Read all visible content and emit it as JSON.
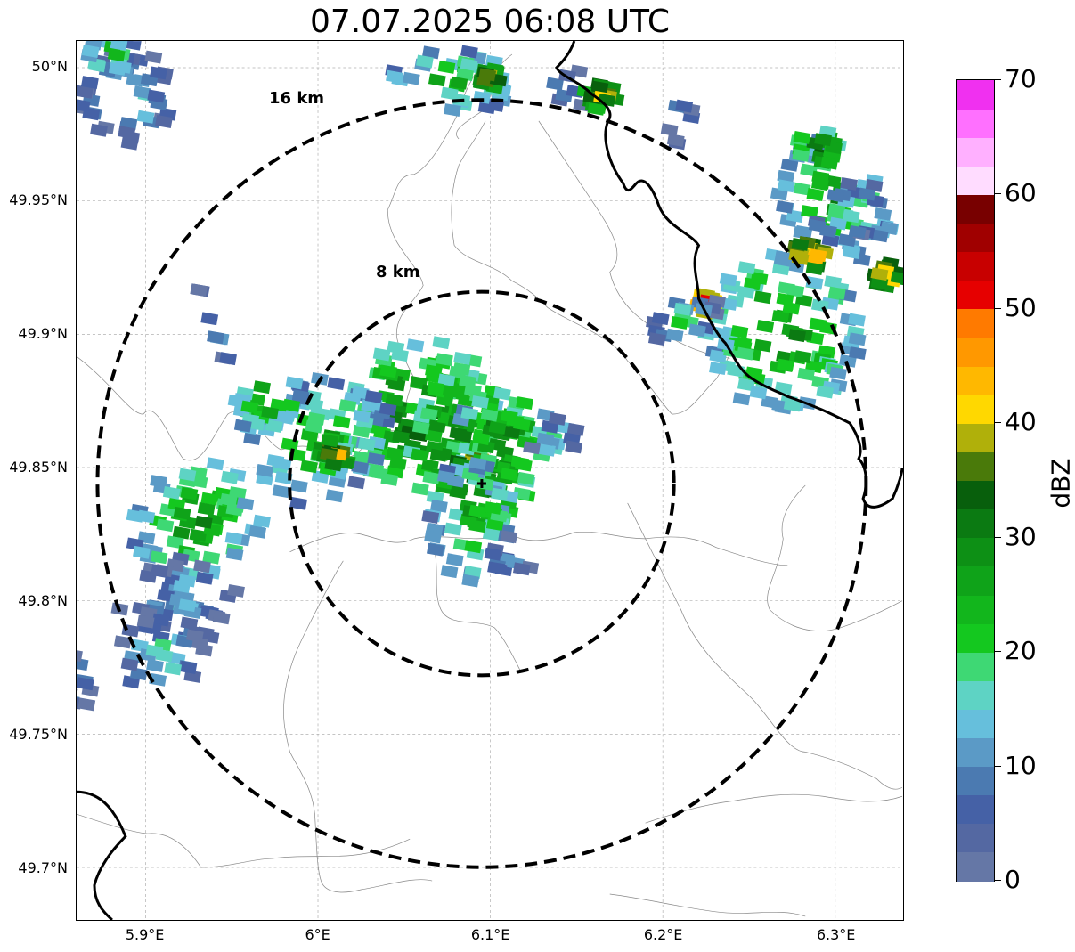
{
  "title": "07.07.2025 06:08 UTC",
  "lat_labels": [
    "50°N",
    "49.95°N",
    "49.9°N",
    "49.85°N",
    "49.8°N",
    "49.75°N",
    "49.7°N"
  ],
  "lon_labels": [
    "5.9°E",
    "6°E",
    "6.1°E",
    "6.2°E",
    "6.3°E"
  ],
  "rings": [
    {
      "label": "16 km",
      "radius_km": 16
    },
    {
      "label": "8 km",
      "radius_km": 8
    }
  ],
  "radar_center": {
    "lon": 6.095,
    "lat": 49.844
  },
  "colorbar": {
    "label": "dBZ",
    "min": 0,
    "max": 70,
    "ticks": [
      "0",
      "10",
      "20",
      "30",
      "40",
      "50",
      "60",
      "70"
    ],
    "colors": [
      "#6577a6",
      "#5468a2",
      "#4561a6",
      "#4b7ab1",
      "#5b9ac6",
      "#66bfdc",
      "#5ed3c4",
      "#3ed874",
      "#14c81f",
      "#12b61c",
      "#0fa319",
      "#0d9015",
      "#0b7a12",
      "#085f0c",
      "#4a7a0a",
      "#b0b00a",
      "#ffd800",
      "#ffb800",
      "#ff9800",
      "#ff7a00",
      "#e60000",
      "#c80000",
      "#a00000",
      "#780000",
      "#ffdcff",
      "#ffb0ff",
      "#ff70ff",
      "#f030f0"
    ]
  },
  "colors": {
    "ring": "#000000",
    "border": "#000000",
    "grid": "#b0b0b0",
    "admin": "#888888"
  },
  "echoes": [
    {
      "lon": 6.06,
      "lat": 49.87,
      "rlon": 0.045,
      "rlat": 0.028,
      "rot": 35,
      "dbz": 30
    },
    {
      "lon": 6.09,
      "lat": 49.855,
      "rlon": 0.035,
      "rlat": 0.03,
      "rot": 30,
      "dbz": 32
    },
    {
      "lon": 6.11,
      "lat": 49.86,
      "rlon": 0.03,
      "rlat": 0.02,
      "rot": 40,
      "dbz": 27
    },
    {
      "lon": 6.09,
      "lat": 49.83,
      "rlon": 0.025,
      "rlat": 0.025,
      "rot": 0,
      "dbz": 22
    },
    {
      "lon": 6.11,
      "lat": 49.815,
      "rlon": 0.02,
      "rlat": 0.012,
      "rot": 20,
      "dbz": 7
    },
    {
      "lon": 6.14,
      "lat": 49.86,
      "rlon": 0.02,
      "rlat": 0.01,
      "rot": 40,
      "dbz": 12
    },
    {
      "lon": 6.0,
      "lat": 49.86,
      "rlon": 0.045,
      "rlat": 0.022,
      "rot": 30,
      "dbz": 22
    },
    {
      "lon": 5.97,
      "lat": 49.875,
      "rlon": 0.02,
      "rlat": 0.012,
      "rot": 30,
      "dbz": 26
    },
    {
      "lon": 6.01,
      "lat": 49.855,
      "rlon": 0.01,
      "rlat": 0.006,
      "rot": 0,
      "dbz": 38
    },
    {
      "lon": 5.94,
      "lat": 49.9,
      "rlon": 0.01,
      "rlat": 0.03,
      "rot": 20,
      "dbz": 6
    },
    {
      "lon": 5.93,
      "lat": 49.83,
      "rlon": 0.04,
      "rlat": 0.022,
      "rot": 30,
      "dbz": 24
    },
    {
      "lon": 5.92,
      "lat": 49.8,
      "rlon": 0.04,
      "rlat": 0.025,
      "rot": 25,
      "dbz": 9
    },
    {
      "lon": 5.91,
      "lat": 49.78,
      "rlon": 0.025,
      "rlat": 0.015,
      "rot": 20,
      "dbz": 16
    },
    {
      "lon": 5.86,
      "lat": 49.77,
      "rlon": 0.012,
      "rlat": 0.015,
      "rot": 0,
      "dbz": 10
    },
    {
      "lon": 5.89,
      "lat": 49.99,
      "rlon": 0.03,
      "rlat": 0.02,
      "rot": 15,
      "dbz": 14
    },
    {
      "lon": 5.88,
      "lat": 50.005,
      "rlon": 0.015,
      "rlat": 0.008,
      "rot": 10,
      "dbz": 22
    },
    {
      "lon": 6.08,
      "lat": 49.995,
      "rlon": 0.04,
      "rlat": 0.012,
      "rot": 0,
      "dbz": 22
    },
    {
      "lon": 6.145,
      "lat": 49.993,
      "rlon": 0.03,
      "rlat": 0.01,
      "rot": 0,
      "dbz": 8
    },
    {
      "lon": 6.165,
      "lat": 49.99,
      "rlon": 0.01,
      "rlat": 0.006,
      "rot": 0,
      "dbz": 38
    },
    {
      "lon": 6.1,
      "lat": 49.996,
      "rlon": 0.006,
      "rlat": 0.004,
      "rot": 0,
      "dbz": 40
    },
    {
      "lon": 6.27,
      "lat": 49.9,
      "rlon": 0.045,
      "rlat": 0.03,
      "rot": 25,
      "dbz": 26
    },
    {
      "lon": 6.3,
      "lat": 49.95,
      "rlon": 0.03,
      "rlat": 0.025,
      "rot": 40,
      "dbz": 23
    },
    {
      "lon": 6.305,
      "lat": 49.945,
      "rlon": 0.025,
      "rlat": 0.012,
      "rot": 40,
      "dbz": 14
    },
    {
      "lon": 6.29,
      "lat": 49.97,
      "rlon": 0.012,
      "rlat": 0.008,
      "rot": 0,
      "dbz": 32
    },
    {
      "lon": 6.285,
      "lat": 49.93,
      "rlon": 0.012,
      "rlat": 0.006,
      "rot": 20,
      "dbz": 44
    },
    {
      "lon": 6.33,
      "lat": 49.922,
      "rlon": 0.008,
      "rlat": 0.005,
      "rot": 20,
      "dbz": 42
    },
    {
      "lon": 6.225,
      "lat": 49.911,
      "rlon": 0.006,
      "rlat": 0.004,
      "rot": 20,
      "dbz": 50
    },
    {
      "lon": 6.21,
      "lat": 49.905,
      "rlon": 0.025,
      "rlat": 0.01,
      "rot": 25,
      "dbz": 14
    },
    {
      "lon": 6.21,
      "lat": 49.98,
      "rlon": 0.015,
      "rlat": 0.015,
      "rot": 10,
      "dbz": 7
    }
  ]
}
